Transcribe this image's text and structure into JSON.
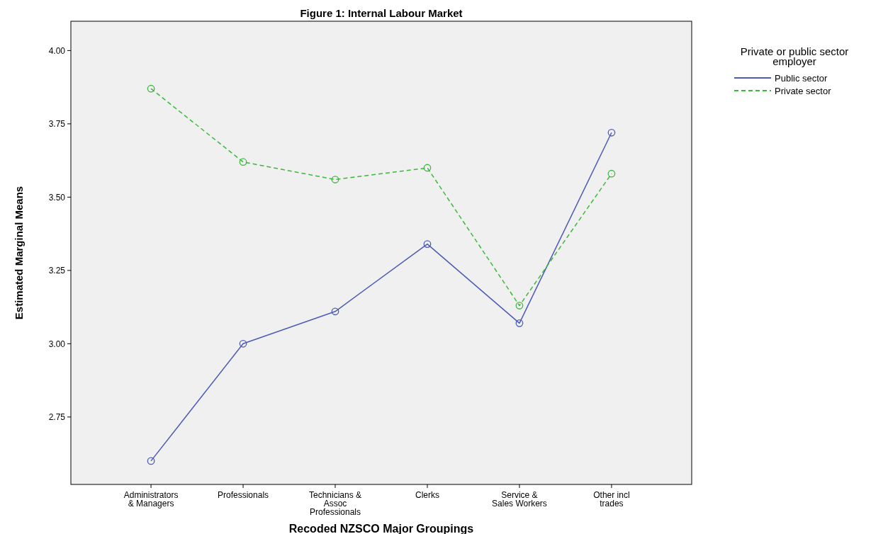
{
  "chart_data": {
    "type": "line",
    "title": "Figure 1: Internal Labour Market",
    "xlabel": "Recoded NZSCO Major Groupings",
    "ylabel": "Estimated Marginal Means",
    "legend_title": "Private or public sector employer",
    "categories": [
      "Administrators & Managers",
      "Professionals",
      "Technicians & Assoc Professionals",
      "Clerks",
      "Service & Sales Workers",
      "Other incl trades"
    ],
    "series": [
      {
        "name": "Public sector",
        "color": "#4d5bb5",
        "values": [
          2.6,
          3.0,
          3.11,
          3.34,
          3.07,
          3.72
        ],
        "line_style": "solid"
      },
      {
        "name": "Private sector",
        "color": "#3cb83c",
        "values": [
          3.87,
          3.62,
          3.56,
          3.6,
          3.13,
          3.58
        ],
        "line_style": "dashed"
      }
    ],
    "ylim": [
      2.52,
      4.1
    ],
    "yticks": [
      {
        "value": 2.75,
        "label": "2.75"
      },
      {
        "value": 3,
        "label": "3.00"
      },
      {
        "value": 3.25,
        "label": "3.25"
      },
      {
        "value": 3.5,
        "label": "3.50"
      },
      {
        "value": 3.75,
        "label": "3.75"
      },
      {
        "value": 4,
        "label": "4.00"
      }
    ],
    "grid": false,
    "legend": "top right",
    "marker": "circle"
  }
}
